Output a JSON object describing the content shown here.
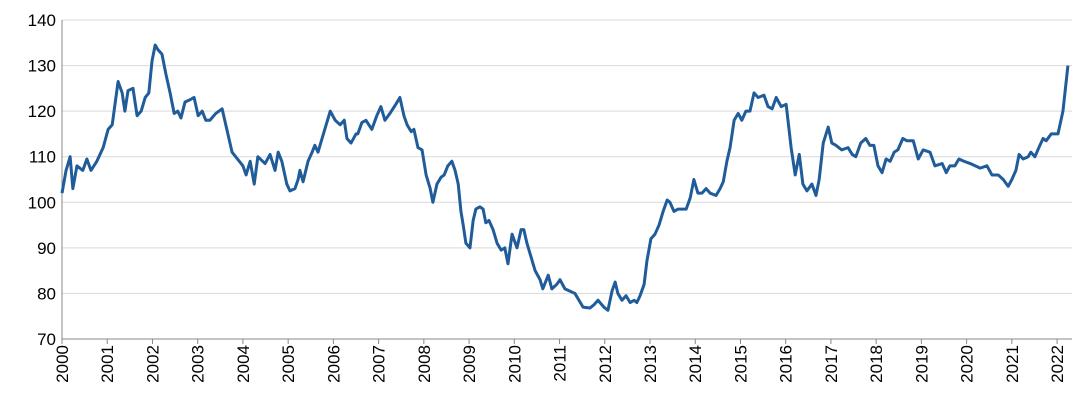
{
  "chart_data": {
    "type": "line",
    "x": [
      2000,
      2000.09,
      2000.18,
      2000.24,
      2000.33,
      2000.46,
      2000.55,
      2000.64,
      2000.77,
      2000.91,
      2001.02,
      2001.11,
      2001.24,
      2001.33,
      2001.39,
      2001.46,
      2001.57,
      2001.66,
      2001.75,
      2001.84,
      2001.92,
      2001.99,
      2002.06,
      2002.12,
      2002.21,
      2002.3,
      2002.39,
      2002.48,
      2002.56,
      2002.63,
      2002.72,
      2002.83,
      2002.92,
      2003.01,
      2003.1,
      2003.18,
      2003.27,
      2003.4,
      2003.54,
      2003.76,
      2004.0,
      2004.07,
      2004.16,
      2004.25,
      2004.33,
      2004.49,
      2004.6,
      2004.71,
      2004.78,
      2004.86,
      2004.97,
      2005.04,
      2005.15,
      2005.22,
      2005.26,
      2005.33,
      2005.44,
      2005.53,
      2005.59,
      2005.66,
      2005.75,
      2005.84,
      2005.93,
      2006.04,
      2006.15,
      2006.24,
      2006.3,
      2006.39,
      2006.5,
      2006.54,
      2006.63,
      2006.72,
      2006.85,
      2006.96,
      2007.05,
      2007.14,
      2007.25,
      2007.38,
      2007.47,
      2007.56,
      2007.63,
      2007.72,
      2007.78,
      2007.87,
      2007.96,
      2008.05,
      2008.14,
      2008.2,
      2008.29,
      2008.38,
      2008.45,
      2008.53,
      2008.62,
      2008.69,
      2008.76,
      2008.82,
      2008.87,
      2008.93,
      2009.02,
      2009.09,
      2009.15,
      2009.24,
      2009.31,
      2009.37,
      2009.44,
      2009.53,
      2009.62,
      2009.71,
      2009.79,
      2009.86,
      2009.95,
      2010.06,
      2010.15,
      2010.21,
      2010.28,
      2010.37,
      2010.46,
      2010.57,
      2010.63,
      2010.75,
      2010.83,
      2010.94,
      2011.01,
      2011.12,
      2011.34,
      2011.52,
      2011.67,
      2011.76,
      2011.85,
      2011.98,
      2012.07,
      2012.16,
      2012.23,
      2012.29,
      2012.38,
      2012.47,
      2012.56,
      2012.65,
      2012.71,
      2012.78,
      2012.87,
      2012.93,
      2013.02,
      2013.11,
      2013.2,
      2013.29,
      2013.38,
      2013.44,
      2013.53,
      2013.62,
      2013.8,
      2013.89,
      2013.97,
      2014.06,
      2014.15,
      2014.24,
      2014.33,
      2014.46,
      2014.55,
      2014.62,
      2014.7,
      2014.77,
      2014.86,
      2014.95,
      2015.03,
      2015.12,
      2015.21,
      2015.3,
      2015.39,
      2015.52,
      2015.61,
      2015.7,
      2015.79,
      2015.9,
      2016.01,
      2016.12,
      2016.21,
      2016.3,
      2016.38,
      2016.47,
      2016.58,
      2016.67,
      2016.74,
      2016.83,
      2016.94,
      2017.02,
      2017.11,
      2017.24,
      2017.38,
      2017.47,
      2017.55,
      2017.66,
      2017.77,
      2017.86,
      2017.95,
      2018.04,
      2018.13,
      2018.22,
      2018.31,
      2018.4,
      2018.48,
      2018.59,
      2018.68,
      2018.82,
      2018.93,
      2019.04,
      2019.19,
      2019.3,
      2019.46,
      2019.55,
      2019.63,
      2019.74,
      2019.83,
      2019.94,
      2020.08,
      2020.3,
      2020.45,
      2020.56,
      2020.7,
      2020.81,
      2020.92,
      2021.0,
      2021.09,
      2021.16,
      2021.25,
      2021.36,
      2021.42,
      2021.51,
      2021.62,
      2021.69,
      2021.76,
      2021.87,
      2022.02,
      2022.13,
      2022.24
    ],
    "series": [
      {
        "color": "#1f5c99",
        "values": [
          102,
          107,
          110,
          103,
          108,
          107,
          109.5,
          107,
          109,
          112,
          116,
          117,
          126.5,
          124,
          120,
          124.5,
          125,
          119,
          120,
          123,
          124,
          131,
          134.5,
          133.5,
          132.5,
          128,
          124,
          119.5,
          120,
          118.5,
          122,
          122.5,
          123,
          119,
          120,
          118,
          118,
          119.5,
          120.5,
          111,
          108,
          106,
          109,
          104,
          110,
          108.5,
          110.5,
          107,
          111,
          109,
          104,
          102.5,
          103,
          105,
          107,
          104.5,
          109,
          111,
          112.5,
          111,
          114,
          117,
          120,
          118,
          117,
          118,
          114,
          113,
          115,
          115,
          117.5,
          118,
          116,
          119,
          121,
          118,
          119.5,
          121.5,
          123,
          119,
          117,
          115.5,
          116,
          112,
          111.5,
          106,
          103,
          100,
          104,
          105.5,
          106,
          108,
          109,
          107,
          104,
          98,
          95,
          91,
          90,
          96,
          98.5,
          99,
          98.5,
          95.5,
          96,
          94,
          91,
          89.5,
          90,
          86.5,
          93,
          90,
          94,
          94,
          91,
          88,
          85,
          83,
          81,
          84,
          81,
          82,
          83,
          81,
          80,
          77,
          76.8,
          77.5,
          78.5,
          77,
          76.3,
          80.5,
          82.5,
          80,
          78.5,
          79.5,
          78,
          78.5,
          78,
          79.5,
          82,
          87,
          92,
          93,
          95,
          98,
          100.5,
          100,
          98,
          98.5,
          98.5,
          101,
          105,
          102,
          102,
          103,
          102,
          101.5,
          103,
          104.5,
          109,
          112,
          118,
          119.5,
          118,
          120,
          120,
          124,
          123,
          123.5,
          121,
          120.5,
          123,
          121,
          121.5,
          112,
          106,
          110.5,
          104,
          102.5,
          104,
          101.5,
          105,
          113,
          116.5,
          113,
          112.5,
          111.5,
          112,
          110.5,
          110,
          113,
          114,
          112.5,
          112.5,
          108,
          106.5,
          109.5,
          109,
          111,
          111.5,
          114,
          113.5,
          113.5,
          109.5,
          111.5,
          111,
          108,
          108.5,
          106.5,
          108,
          108,
          109.5,
          109,
          108.5,
          107.5,
          108,
          106,
          106,
          105,
          103.5,
          105,
          107,
          110.5,
          109.5,
          110,
          111,
          110,
          112.5,
          114,
          113.5,
          115,
          115,
          120,
          130
        ]
      }
    ],
    "xlim": [
      2000,
      2022.33
    ],
    "xticks": [
      2000,
      2001,
      2002,
      2003,
      2004,
      2005,
      2006,
      2007,
      2008,
      2009,
      2010,
      2011,
      2012,
      2013,
      2014,
      2015,
      2016,
      2017,
      2018,
      2019,
      2020,
      2021,
      2022
    ],
    "ylim": [
      70,
      140
    ],
    "yticks": [
      70,
      80,
      90,
      100,
      110,
      120,
      130,
      140
    ],
    "grid": true
  }
}
